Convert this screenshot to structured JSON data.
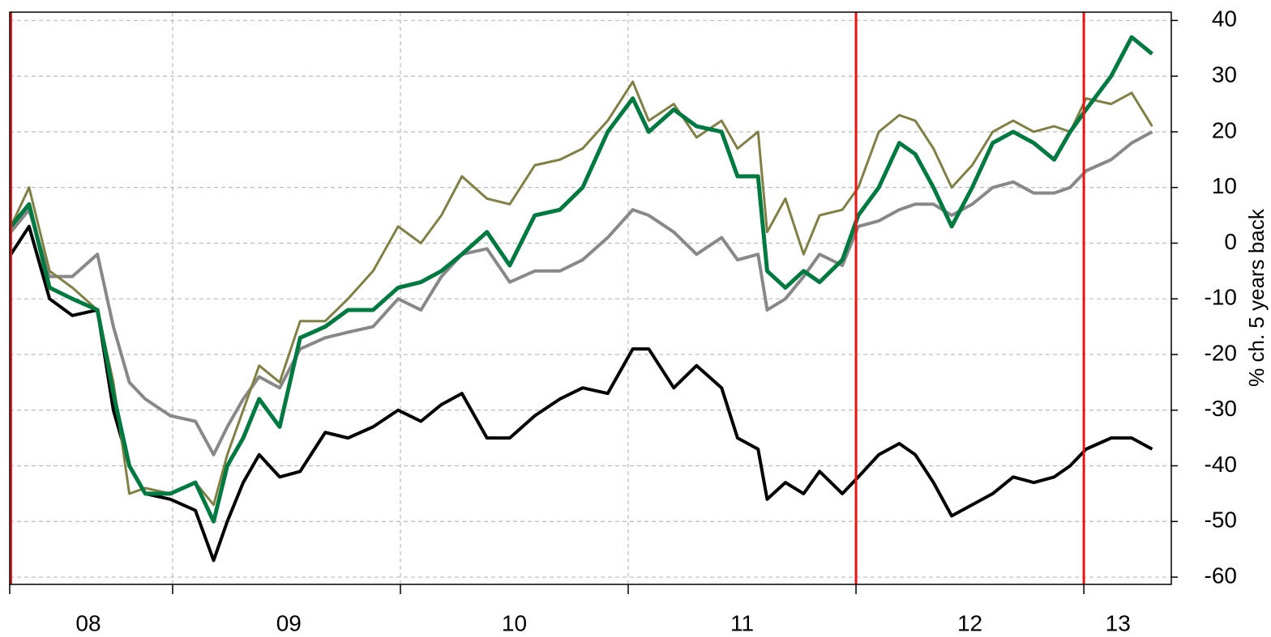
{
  "chart_data": {
    "type": "line",
    "y_label": "% ch. 5 years back",
    "xlim": [
      2008.285,
      2013.384
    ],
    "ylim": [
      -61.3,
      41.5
    ],
    "yticks": [
      40,
      30,
      20,
      10,
      0,
      -10,
      -20,
      -30,
      -40,
      -50,
      -60
    ],
    "xticks": [
      {
        "value": 2008.63,
        "label": "08"
      },
      {
        "value": 2009.51,
        "label": "09"
      },
      {
        "value": 2010.5,
        "label": "10"
      },
      {
        "value": 2011.5,
        "label": "11"
      },
      {
        "value": 2012.5,
        "label": "12"
      },
      {
        "value": 2013.15,
        "label": "13"
      }
    ],
    "xgrid": [
      2009,
      2010,
      2011,
      2012,
      2013
    ],
    "vlines": [
      2008.29,
      2012,
      2013
    ],
    "vline_color": "#ee1111",
    "grid": true,
    "x": [
      2008.29,
      2008.37,
      2008.46,
      2008.56,
      2008.67,
      2008.74,
      2008.81,
      2008.88,
      2008.99,
      2009.1,
      2009.18,
      2009.24,
      2009.31,
      2009.38,
      2009.47,
      2009.56,
      2009.67,
      2009.77,
      2009.88,
      2009.99,
      2010.09,
      2010.18,
      2010.27,
      2010.38,
      2010.48,
      2010.59,
      2010.7,
      2010.8,
      2010.91,
      2011.02,
      2011.09,
      2011.2,
      2011.3,
      2011.41,
      2011.48,
      2011.57,
      2011.61,
      2011.69,
      2011.77,
      2011.84,
      2011.94,
      2012.01,
      2012.1,
      2012.19,
      2012.26,
      2012.34,
      2012.42,
      2012.51,
      2012.6,
      2012.69,
      2012.78,
      2012.87,
      2012.94,
      2013.01,
      2013.12,
      2013.21,
      2013.3
    ],
    "series": [
      {
        "color": "#888888",
        "width": 4,
        "values": [
          2,
          6,
          -6,
          -6,
          -2,
          -15,
          -25,
          -28,
          -31,
          -32,
          -38,
          -33,
          -28,
          -24,
          -26,
          -19,
          -17,
          -16,
          -15,
          -10,
          -12,
          -6,
          -2,
          -1,
          -7,
          -5,
          -5,
          -3,
          1,
          6,
          5,
          2,
          -2,
          1,
          -3,
          -2,
          -12,
          -10,
          -6,
          -2,
          -4,
          3,
          4,
          6,
          7,
          7,
          5,
          7,
          10,
          11,
          9,
          9,
          10,
          13,
          15,
          18,
          20
        ]
      },
      {
        "color": "#000000",
        "width": 4,
        "values": [
          -2,
          3,
          -10,
          -13,
          -12,
          -30,
          -40,
          -45,
          -46,
          -48,
          -57,
          -50,
          -43,
          -38,
          -42,
          -41,
          -34,
          -35,
          -33,
          -30,
          -32,
          -29,
          -27,
          -35,
          -35,
          -31,
          -28,
          -26,
          -27,
          -19,
          -19,
          -26,
          -22,
          -26,
          -35,
          -37,
          -46,
          -43,
          -45,
          -41,
          -45,
          -42,
          -38,
          -36,
          -38,
          -43,
          -49,
          -47,
          -45,
          -42,
          -43,
          -42,
          -40,
          -37,
          -35,
          -35,
          -37
        ]
      },
      {
        "color": "#808045",
        "width": 3,
        "values": [
          3,
          10,
          -5,
          -8,
          -12,
          -25,
          -45,
          -44,
          -45,
          -43,
          -47,
          -38,
          -30,
          -22,
          -25,
          -14,
          -14,
          -10,
          -5,
          3,
          0,
          5,
          12,
          8,
          7,
          14,
          15,
          17,
          22,
          29,
          22,
          25,
          19,
          22,
          17,
          20,
          2,
          8,
          -2,
          5,
          6,
          10,
          20,
          23,
          22,
          17,
          10,
          14,
          20,
          22,
          20,
          21,
          20,
          26,
          25,
          27,
          21
        ]
      },
      {
        "color": "#007a40",
        "width": 5,
        "values": [
          3,
          7,
          -8,
          -10,
          -12,
          -27,
          -40,
          -45,
          -45,
          -43,
          -50,
          -40,
          -35,
          -28,
          -33,
          -17,
          -15,
          -12,
          -12,
          -8,
          -7,
          -5,
          -2,
          2,
          -4,
          5,
          6,
          10,
          20,
          26,
          20,
          24,
          21,
          20,
          12,
          12,
          -5,
          -8,
          -5,
          -7,
          -3,
          5,
          10,
          18,
          16,
          10,
          3,
          10,
          18,
          20,
          18,
          15,
          20,
          24,
          30,
          37,
          34
        ]
      }
    ]
  }
}
